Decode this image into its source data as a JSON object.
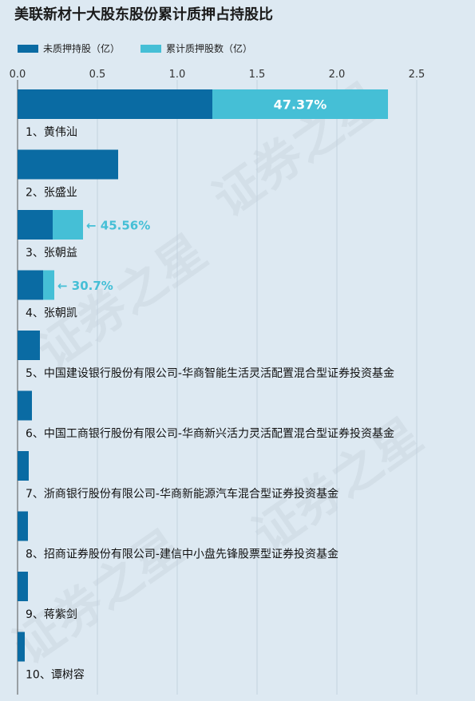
{
  "title": "美联新材十大股东股份累计质押占持股比",
  "legend": {
    "unpledged": "未质押持股（亿）",
    "pledged": "累计质押股数（亿）"
  },
  "colors": {
    "unpledged": "#0a6ba3",
    "pledged": "#45bfd6",
    "label_inside": "#ffffff",
    "label_outside": "#45bfd6"
  },
  "watermark": "证券之星",
  "chart_data": {
    "type": "bar",
    "orientation": "horizontal",
    "stacked": true,
    "xlim": [
      0,
      2.75
    ],
    "xticks": [
      "0.0",
      "0.5",
      "1.0",
      "1.5",
      "2.0",
      "2.5"
    ],
    "grid": true,
    "legend_position": "top-left",
    "categories": [
      "1、黄伟汕",
      "2、张盛业",
      "3、张朝益",
      "4、张朝凯",
      "5、中国建设银行股份有限公司-华商智能生活灵活配置混合型证券投资基金",
      "6、中国工商银行股份有限公司-华商新兴活力灵活配置混合型证券投资基金",
      "7、浙商银行股份有限公司-华商新能源汽车混合型证券投资基金",
      "8、招商证券股份有限公司-建信中小盘先锋股票型证券投资基金",
      "9、蒋紫剑",
      "10、谭树容"
    ],
    "series": [
      {
        "name": "未质押持股（亿）",
        "values": [
          1.22,
          0.63,
          0.22,
          0.16,
          0.14,
          0.09,
          0.07,
          0.065,
          0.065,
          0.045
        ]
      },
      {
        "name": "累计质押股数（亿）",
        "values": [
          1.1,
          0.0,
          0.19,
          0.07,
          0,
          0,
          0,
          0,
          0,
          0
        ]
      }
    ],
    "annotations": [
      {
        "index": 0,
        "text": "47.37%",
        "style": "inside"
      },
      {
        "index": 2,
        "text": "← 45.56%",
        "style": "arrow"
      },
      {
        "index": 3,
        "text": "← 30.7%",
        "style": "arrow"
      }
    ]
  }
}
